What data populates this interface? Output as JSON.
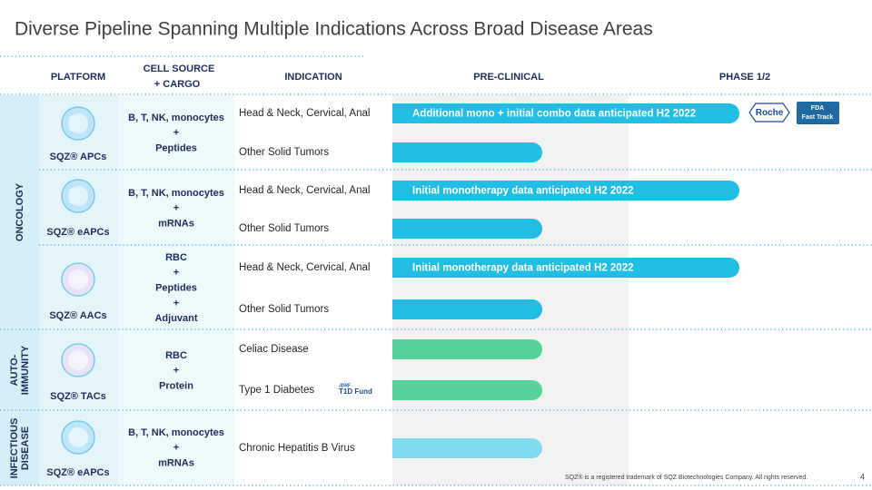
{
  "title": "Diverse Pipeline Spanning Multiple Indications Across Broad Disease Areas",
  "headers": {
    "platform": "PLATFORM",
    "cell_source": [
      "CELL SOURCE",
      "+ CARGO"
    ],
    "indication": "INDICATION",
    "pre_clinical": "PRE-CLINICAL",
    "phase": "PHASE 1/2"
  },
  "areas": [
    {
      "label": [
        "ONCOLOGY"
      ]
    },
    {
      "label": [
        "AUTO-",
        "IMMUNITY"
      ]
    },
    {
      "label": [
        "INFECTIOUS",
        "DISEASE"
      ]
    }
  ],
  "platforms": [
    {
      "name": "SQZ® APCs",
      "cargo": [
        "B, T, NK, monocytes",
        "+",
        "Peptides"
      ],
      "indications": [
        {
          "name": "Head & Neck, Cervical, Anal",
          "note": "Additional mono + initial combo data anticipated H2 2022"
        },
        {
          "name": "Other Solid Tumors"
        }
      ]
    },
    {
      "name": "SQZ® eAPCs",
      "cargo": [
        "B, T, NK, monocytes",
        "+",
        "mRNAs"
      ],
      "indications": [
        {
          "name": "Head & Neck, Cervical, Anal",
          "note": "Initial monotherapy data anticipated H2 2022"
        },
        {
          "name": "Other Solid Tumors"
        }
      ]
    },
    {
      "name": "SQZ® AACs",
      "cargo": [
        "RBC",
        "+",
        "Peptides",
        "+",
        "Adjuvant"
      ],
      "indications": [
        {
          "name": "Head & Neck, Cervical, Anal",
          "note": "Initial monotherapy  data anticipated H2 2022"
        },
        {
          "name": "Other Solid Tumors"
        }
      ]
    },
    {
      "name": "SQZ® TACs",
      "cargo": [
        "RBC",
        "+",
        "Protein"
      ],
      "indications": [
        {
          "name": "Celiac Disease"
        },
        {
          "name": "Type 1 Diabetes"
        }
      ]
    },
    {
      "name": "SQZ® eAPCs",
      "cargo": [
        "B, T, NK, monocytes",
        "+",
        "mRNAs"
      ],
      "indications": [
        {
          "name": "Chronic Hepatitis B Virus"
        }
      ]
    }
  ],
  "badges": {
    "roche": "Roche",
    "fda": [
      "FDA",
      "Fast Track"
    ],
    "jdrf": [
      "JDRF",
      "T1D Fund"
    ]
  },
  "footer": "SQZ® is a registered trademark of SQZ Biotechnologies Company. All rights reserved.",
  "page": "4"
}
